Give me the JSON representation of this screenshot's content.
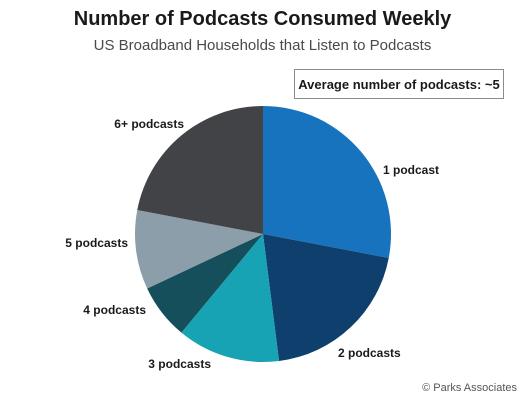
{
  "chart_data": {
    "type": "pie",
    "title": "Number of Podcasts Consumed Weekly",
    "subtitle": "US Broadband Households that Listen to Podcasts",
    "annotation": "Average number of podcasts: ~5",
    "categories": [
      "1 podcast",
      "2 podcasts",
      "3 podcasts",
      "4 podcasts",
      "5 podcasts",
      "6+ podcasts"
    ],
    "values": [
      28,
      20,
      13,
      7,
      10,
      22
    ],
    "colors": [
      "#1873be",
      "#0f3f6c",
      "#17a3b3",
      "#164f5c",
      "#8b9ea9",
      "#424346"
    ],
    "start_angle_deg": 0,
    "direction": "clockwise",
    "legend": "none",
    "source": "© Parks Associates"
  }
}
